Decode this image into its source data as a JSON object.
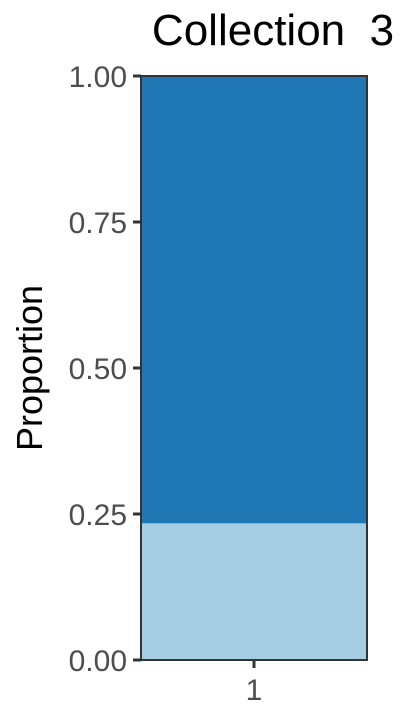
{
  "chart_data": {
    "type": "bar",
    "stacked": true,
    "title": "Collection  3",
    "ylabel": "Proportion",
    "xlabel": "",
    "categories": [
      "1"
    ],
    "series": [
      {
        "values": [
          0.234
        ],
        "color": "#a6cee3"
      },
      {
        "values": [
          0.766
        ],
        "color": "#1f78b4"
      }
    ],
    "ylim": [
      0,
      1
    ],
    "yticks": [
      0,
      0.25,
      0.5,
      0.75,
      1
    ],
    "ytick_labels": [
      "0.00",
      "0.25",
      "0.50",
      "0.75",
      "1.00"
    ],
    "grid": false
  }
}
